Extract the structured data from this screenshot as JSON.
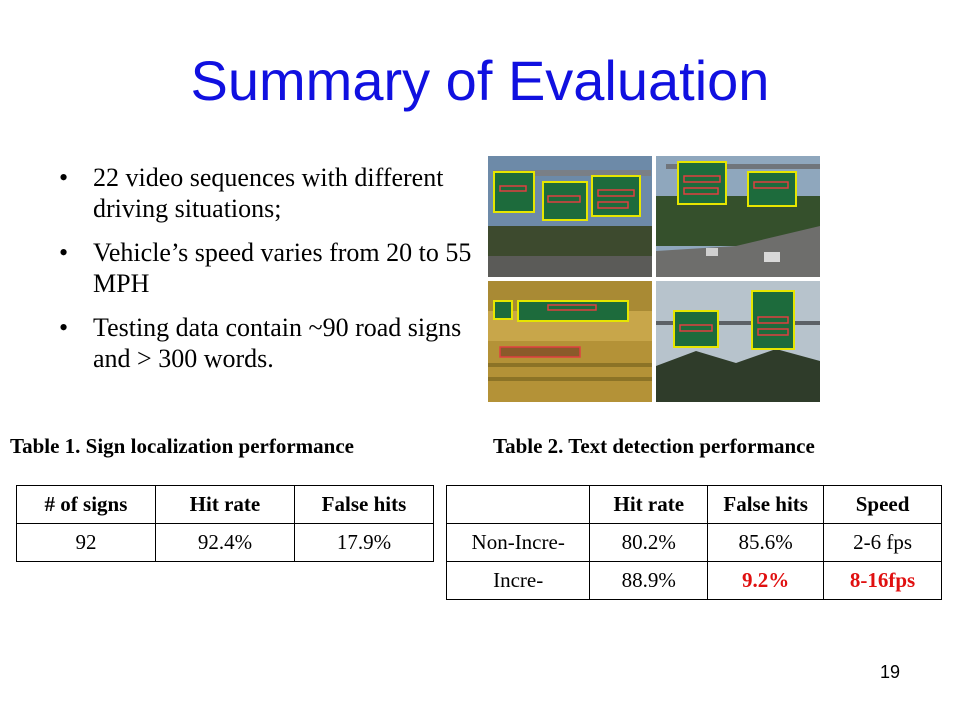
{
  "title": "Summary of Evaluation",
  "bullets": [
    "22 video sequences with different driving situations;",
    "Vehicle’s speed varies from 20 to 55 MPH",
    "Testing data contain ~90 road signs and > 300 words."
  ],
  "table1": {
    "caption": "Table 1. Sign localization performance",
    "headers": [
      "# of signs",
      "Hit rate",
      "False hits"
    ],
    "row": [
      "92",
      "92.4%",
      "17.9%"
    ]
  },
  "table2": {
    "caption": "Table 2. Text detection performance",
    "headers": [
      "",
      "Hit rate",
      "False hits",
      "Speed"
    ],
    "rows": [
      [
        "Non-Incre-",
        "80.2%",
        "85.6%",
        "2-6 fps"
      ],
      [
        "Incre-",
        "88.9%",
        "9.2%",
        "8-16fps"
      ]
    ]
  },
  "highlight_color": "#e01010",
  "title_color": "#1010e0",
  "page_number": "19"
}
